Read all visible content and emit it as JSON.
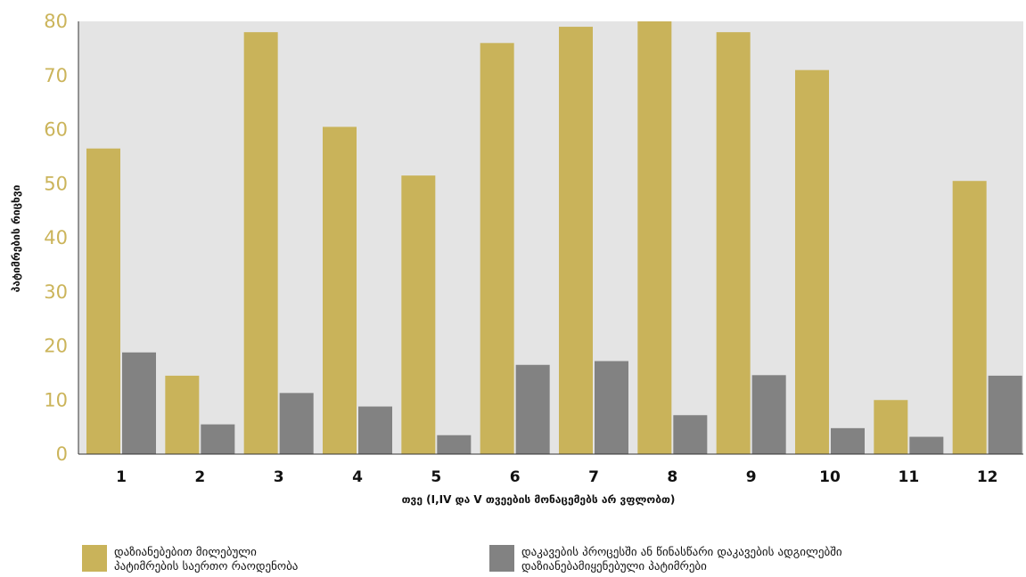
{
  "chart_data": {
    "type": "bar",
    "title": "",
    "xlabel": "თვე (I,IV და V თვეების მონაცემებს არ ვფლობთ)",
    "ylabel": "პატიმრების რიცხვი",
    "categories": [
      "1",
      "2",
      "3",
      "4",
      "5",
      "6",
      "7",
      "8",
      "9",
      "10",
      "11",
      "12"
    ],
    "ylim": [
      0,
      80
    ],
    "yticks": [
      0,
      10,
      20,
      30,
      40,
      50,
      60,
      70,
      80
    ],
    "grid": false,
    "legend_position": "bottom",
    "plot_background": "#e4e4e4",
    "series": [
      {
        "name": "დაზიანებებით მილებული პატიმრების საერთო რაოდენობა",
        "legend_lines": [
          "დაზიანებებით მილებული",
          "პატიმრების საერთო რაოდენობა"
        ],
        "color": "#c9b35a",
        "values": [
          56.5,
          14.5,
          78,
          60.5,
          51.5,
          76,
          79,
          80,
          78,
          71,
          10,
          50.5
        ]
      },
      {
        "name": "დაკავების პროცესში ან წინასწარი დაკავების ადგილებში დაზიანებამიყენებული პატიმრები",
        "legend_lines": [
          "დაკავების პროცესში ან წინასწარი დაკავების ადგილებში",
          "დაზიანებამიყენებული პატიმრები"
        ],
        "color": "#828282",
        "values": [
          18.8,
          5.5,
          11.3,
          8.8,
          3.5,
          16.5,
          17.2,
          7.2,
          14.6,
          4.8,
          3.2,
          14.5
        ]
      }
    ]
  }
}
